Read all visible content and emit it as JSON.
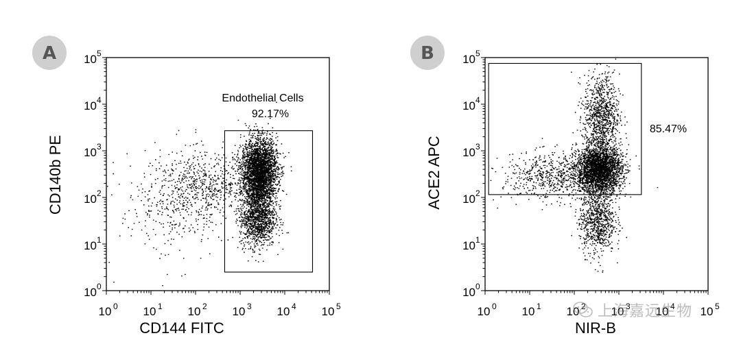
{
  "colors": {
    "badge_bg": "#cfcfcf",
    "badge_fg": "#555555",
    "axis": "#000000",
    "dots": "#000000",
    "gate": "#000000",
    "watermark": "#888888"
  },
  "watermark": {
    "text": "上海嘉远生物",
    "icon": "wechat-icon"
  },
  "chart_data": [
    {
      "type": "scatter",
      "panel_label": "A",
      "title": "",
      "xlabel": "CD144 FITC",
      "ylabel": "CD140b PE",
      "xscale": "log",
      "yscale": "log",
      "xlim": [
        1,
        100000
      ],
      "ylim": [
        1,
        100000
      ],
      "tick_exponents": [
        0,
        1,
        2,
        3,
        4,
        5
      ],
      "tick_base": "10",
      "grid": false,
      "gate": {
        "name": "Endothelial Cells",
        "percent": "92.17%",
        "x_range": [
          450,
          42000
        ],
        "y_range": [
          2.5,
          2700
        ]
      },
      "populations": [
        {
          "weight": 0.62,
          "x_center_log": 3.42,
          "y_center_log": 2.55,
          "x_sd_log": 0.2,
          "y_sd_log": 0.35
        },
        {
          "weight": 0.22,
          "x_center_log": 3.38,
          "y_center_log": 1.55,
          "x_sd_log": 0.2,
          "y_sd_log": 0.3
        },
        {
          "weight": 0.1,
          "x_center_log": 2.2,
          "y_center_log": 2.25,
          "x_sd_log": 0.5,
          "y_sd_log": 0.35
        },
        {
          "weight": 0.06,
          "x_center_log": 1.5,
          "y_center_log": 1.8,
          "x_sd_log": 0.6,
          "y_sd_log": 0.6
        }
      ],
      "n_points": 5200
    },
    {
      "type": "scatter",
      "panel_label": "B",
      "title": "",
      "xlabel": "NIR-B",
      "ylabel": "ACE2 APC",
      "xscale": "log",
      "yscale": "log",
      "xlim": [
        1,
        100000
      ],
      "ylim": [
        1,
        100000
      ],
      "tick_exponents": [
        0,
        1,
        2,
        3,
        4,
        5
      ],
      "tick_base": "10",
      "grid": false,
      "gate": {
        "name": "",
        "percent": "85.47%",
        "x_range": [
          1.2,
          3200
        ],
        "y_range": [
          115,
          75000
        ]
      },
      "populations": [
        {
          "weight": 0.55,
          "x_center_log": 2.55,
          "y_center_log": 2.6,
          "x_sd_log": 0.25,
          "y_sd_log": 0.25
        },
        {
          "weight": 0.18,
          "x_center_log": 2.6,
          "y_center_log": 3.75,
          "x_sd_log": 0.2,
          "y_sd_log": 0.45
        },
        {
          "weight": 0.15,
          "x_center_log": 2.5,
          "y_center_log": 1.5,
          "x_sd_log": 0.2,
          "y_sd_log": 0.35
        },
        {
          "weight": 0.12,
          "x_center_log": 1.5,
          "y_center_log": 2.45,
          "x_sd_log": 0.55,
          "y_sd_log": 0.25
        }
      ],
      "n_points": 5200
    }
  ]
}
